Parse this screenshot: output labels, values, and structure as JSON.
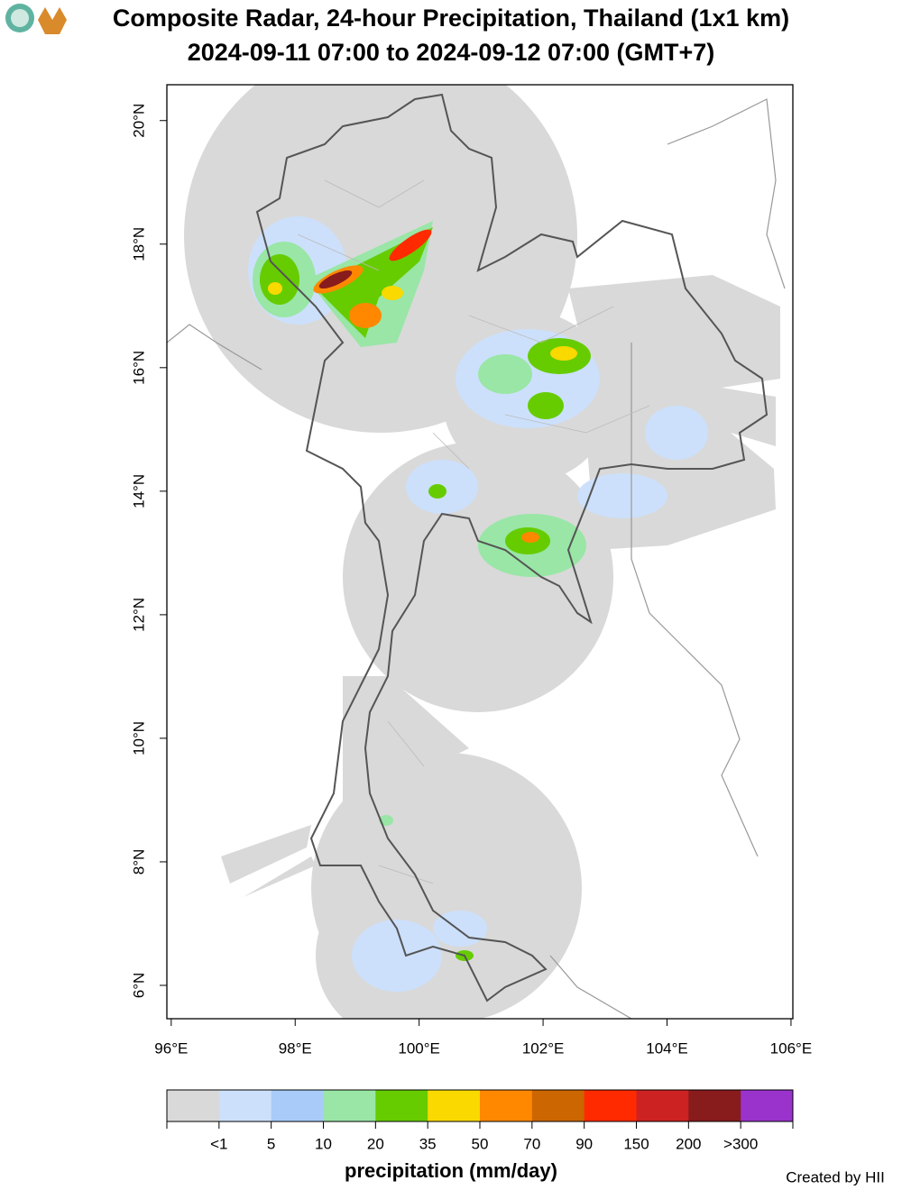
{
  "header": {
    "title": "Composite Radar, 24-hour Precipitation, Thailand (1x1 km)",
    "subtitle": "2024-09-11 07:00 to 2024-09-12 07:00 (GMT+7)"
  },
  "map": {
    "xlim": [
      95.93,
      106.03
    ],
    "ylim": [
      5.46,
      20.58
    ],
    "xticks": [
      {
        "value": 96,
        "label": "96°E"
      },
      {
        "value": 98,
        "label": "98°E"
      },
      {
        "value": 100,
        "label": "100°E"
      },
      {
        "value": 102,
        "label": "102°E"
      },
      {
        "value": 104,
        "label": "104°E"
      },
      {
        "value": 106,
        "label": "106°E"
      }
    ],
    "yticks": [
      {
        "value": 6,
        "label": "6°N"
      },
      {
        "value": 8,
        "label": "8°N"
      },
      {
        "value": 10,
        "label": "10°N"
      },
      {
        "value": 12,
        "label": "12°N"
      },
      {
        "value": 14,
        "label": "14°N"
      },
      {
        "value": 16,
        "label": "16°N"
      },
      {
        "value": 18,
        "label": "18°N"
      },
      {
        "value": 20,
        "label": "20°N"
      }
    ]
  },
  "legend": {
    "title": "precipitation (mm/day)",
    "colors": [
      "#d9d9d9",
      "#cce0fb",
      "#a9cbf9",
      "#99e6a6",
      "#66cc00",
      "#f9d900",
      "#ff8800",
      "#cc6600",
      "#ff2a00",
      "#cc2222",
      "#881b1b",
      "#9933cc"
    ],
    "breaks": [
      {
        "value": 1,
        "label": "<1"
      },
      5,
      10,
      20,
      35,
      50,
      70,
      90,
      150,
      200,
      {
        "value": 300,
        "label": ">300"
      }
    ]
  },
  "credit": "Created by HII"
}
